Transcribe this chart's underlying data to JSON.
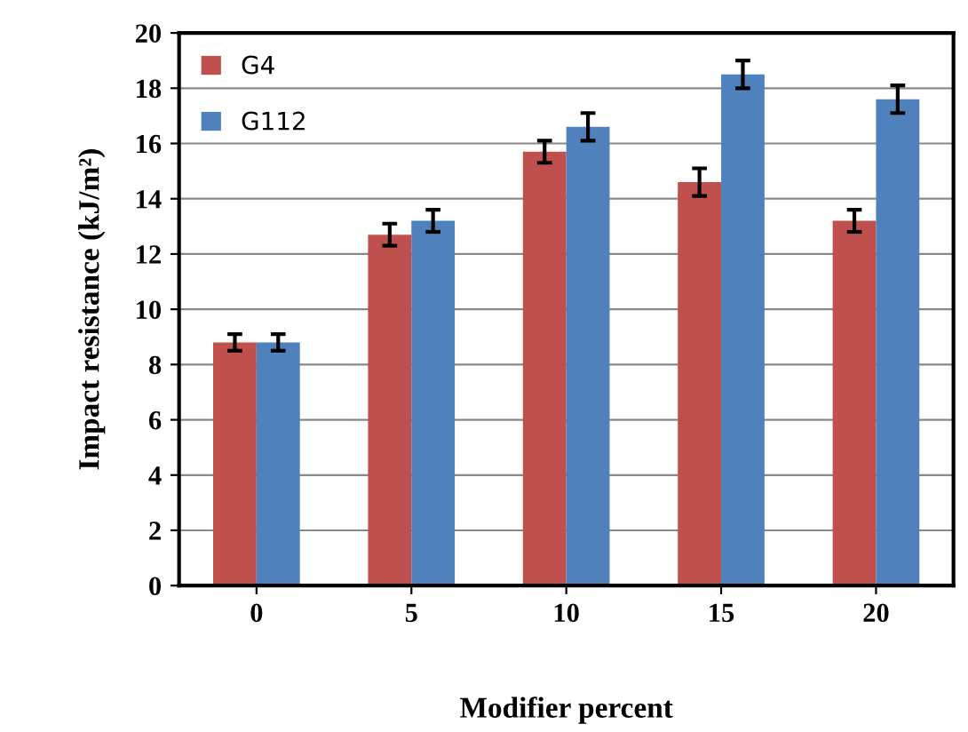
{
  "chart_data": {
    "type": "bar",
    "xlabel": "Modifier percent",
    "ylabel": "Impact resistance (kJ/m²)",
    "categories": [
      "0",
      "5",
      "10",
      "15",
      "20"
    ],
    "series": [
      {
        "name": "G4",
        "color": "#c0504d",
        "values": [
          8.8,
          12.7,
          15.7,
          14.6,
          13.2
        ],
        "errors": [
          0.3,
          0.4,
          0.4,
          0.5,
          0.4
        ]
      },
      {
        "name": "G112",
        "color": "#4f81bd",
        "values": [
          8.8,
          13.2,
          16.6,
          18.5,
          17.6
        ],
        "errors": [
          0.3,
          0.4,
          0.5,
          0.5,
          0.5
        ]
      }
    ],
    "ylim": [
      0,
      20
    ],
    "yticks": [
      0,
      2,
      4,
      6,
      8,
      10,
      12,
      14,
      16,
      18,
      20
    ],
    "grid": "y",
    "legend": "top left"
  }
}
